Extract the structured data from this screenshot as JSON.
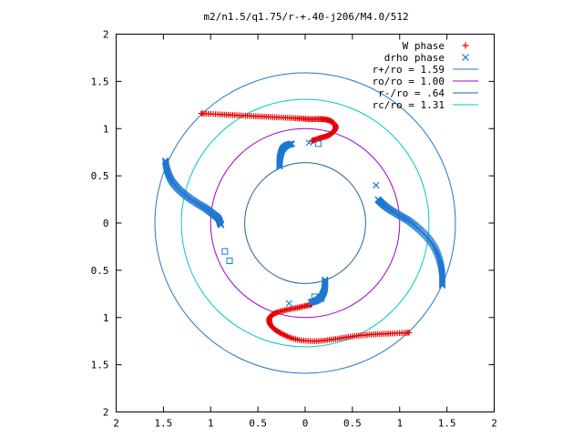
{
  "chart_data": {
    "type": "scatter",
    "title": "m2/n1.5/q1.75/r-+.40-j206/M4.0/512",
    "xlim": [
      -2,
      2
    ],
    "ylim": [
      -2,
      2
    ],
    "x_ticks": [
      {
        "value": -2,
        "label": "2"
      },
      {
        "value": -1.5,
        "label": "1.5"
      },
      {
        "value": -1,
        "label": "1"
      },
      {
        "value": -0.5,
        "label": "0.5"
      },
      {
        "value": 0,
        "label": "0"
      },
      {
        "value": 0.5,
        "label": "0.5"
      },
      {
        "value": 1,
        "label": "1"
      },
      {
        "value": 1.5,
        "label": "1.5"
      },
      {
        "value": 2,
        "label": "2"
      }
    ],
    "y_ticks": [
      {
        "value": 2,
        "label": "2"
      },
      {
        "value": 1.5,
        "label": "1.5"
      },
      {
        "value": 1,
        "label": "1"
      },
      {
        "value": 0.5,
        "label": "0.5"
      },
      {
        "value": 0,
        "label": "0"
      },
      {
        "value": -0.5,
        "label": "0.5"
      },
      {
        "value": -1,
        "label": "1"
      },
      {
        "value": -1.5,
        "label": "1.5"
      },
      {
        "value": -2,
        "label": "2"
      }
    ],
    "legend_position": "top-right",
    "grid": false,
    "circles": [
      {
        "name": "r+/ro = 1.59",
        "radius": 1.59,
        "color": "#1e78c8"
      },
      {
        "name": "ro/ro = 1.00",
        "radius": 1.0,
        "color": "#a000c8"
      },
      {
        "name": "r-/ro = .64",
        "radius": 0.64,
        "color": "#1e64a0"
      },
      {
        "name": "rc/ro = 1.31",
        "radius": 1.31,
        "color": "#00c8c8"
      }
    ],
    "series": [
      {
        "name": "W phase",
        "marker": "+",
        "color": "#e60000",
        "arms": [
          [
            [
              -1.1,
              1.16
            ],
            [
              -0.9,
              1.15
            ],
            [
              -0.7,
              1.14
            ],
            [
              -0.5,
              1.13
            ],
            [
              -0.3,
              1.12
            ],
            [
              -0.1,
              1.11
            ],
            [
              0.05,
              1.1
            ],
            [
              0.18,
              1.1
            ],
            [
              0.27,
              1.08
            ],
            [
              0.32,
              1.03
            ],
            [
              0.31,
              0.98
            ],
            [
              0.25,
              0.93
            ],
            [
              0.16,
              0.9
            ],
            [
              0.07,
              0.87
            ]
          ],
          [
            [
              1.1,
              -1.16
            ],
            [
              0.9,
              -1.17
            ],
            [
              0.7,
              -1.18
            ],
            [
              0.5,
              -1.2
            ],
            [
              0.3,
              -1.23
            ],
            [
              0.1,
              -1.25
            ],
            [
              -0.1,
              -1.23
            ],
            [
              -0.25,
              -1.17
            ],
            [
              -0.35,
              -1.1
            ],
            [
              -0.38,
              -1.02
            ],
            [
              -0.33,
              -0.96
            ],
            [
              -0.2,
              -0.92
            ],
            [
              -0.05,
              -0.89
            ],
            [
              0.07,
              -0.86
            ]
          ]
        ]
      },
      {
        "name": "drho phase",
        "marker": "x",
        "color": "#1e78d2",
        "arms": [
          [
            [
              -1.48,
              0.66
            ],
            [
              -1.46,
              0.56
            ],
            [
              -1.42,
              0.46
            ],
            [
              -1.35,
              0.37
            ],
            [
              -1.26,
              0.29
            ],
            [
              -1.16,
              0.22
            ],
            [
              -1.06,
              0.16
            ],
            [
              -0.98,
              0.1
            ],
            [
              -0.92,
              0.05
            ],
            [
              -0.9,
              0.0
            ],
            [
              -0.89,
              -0.02
            ]
          ],
          [
            [
              0.77,
              0.25
            ],
            [
              0.82,
              0.2
            ],
            [
              0.9,
              0.14
            ],
            [
              1.0,
              0.08
            ],
            [
              1.1,
              0.02
            ],
            [
              1.2,
              -0.06
            ],
            [
              1.3,
              -0.16
            ],
            [
              1.38,
              -0.28
            ],
            [
              1.43,
              -0.42
            ],
            [
              1.45,
              -0.55
            ],
            [
              1.45,
              -0.66
            ]
          ],
          [
            [
              -0.27,
              0.6
            ],
            [
              -0.27,
              0.66
            ],
            [
              -0.26,
              0.72
            ],
            [
              -0.24,
              0.78
            ],
            [
              -0.2,
              0.82
            ],
            [
              -0.14,
              0.84
            ]
          ],
          [
            [
              0.21,
              -0.6
            ],
            [
              0.21,
              -0.66
            ],
            [
              0.2,
              -0.72
            ],
            [
              0.17,
              -0.78
            ],
            [
              0.12,
              -0.82
            ],
            [
              0.06,
              -0.84
            ]
          ],
          [
            [
              0.75,
              0.4
            ],
            [
              -0.17,
              -0.85
            ],
            [
              0.04,
              0.85
            ]
          ]
        ]
      }
    ],
    "markers_square": [
      [
        -0.85,
        -0.3
      ],
      [
        -0.8,
        -0.4
      ],
      [
        0.14,
        0.84
      ],
      [
        0.1,
        -0.78
      ],
      [
        0.17,
        -0.8
      ]
    ]
  }
}
